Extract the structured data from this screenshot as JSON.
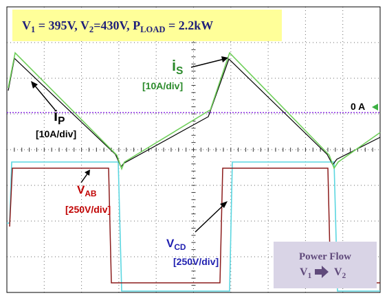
{
  "header": {
    "title": [
      "V",
      "1",
      " = 395V, V",
      "2",
      "=430V, P",
      "LOAD",
      " = 2.2kW"
    ]
  },
  "labels": {
    "i_s": {
      "name": [
        "i",
        "S"
      ],
      "scale": "[10A/div]"
    },
    "i_p": {
      "name": [
        "i",
        "P"
      ],
      "scale": "[10A/div]"
    },
    "zero": "0 A",
    "v_ab": {
      "name": [
        "V",
        "AB"
      ],
      "scale": "[250V/div]"
    },
    "v_cd": {
      "name": [
        "V",
        "CD"
      ],
      "scale": "[250V/div]"
    }
  },
  "power_flow": {
    "title": "Power Flow",
    "from": [
      "V",
      "1"
    ],
    "to": [
      "V",
      "2"
    ]
  }
}
